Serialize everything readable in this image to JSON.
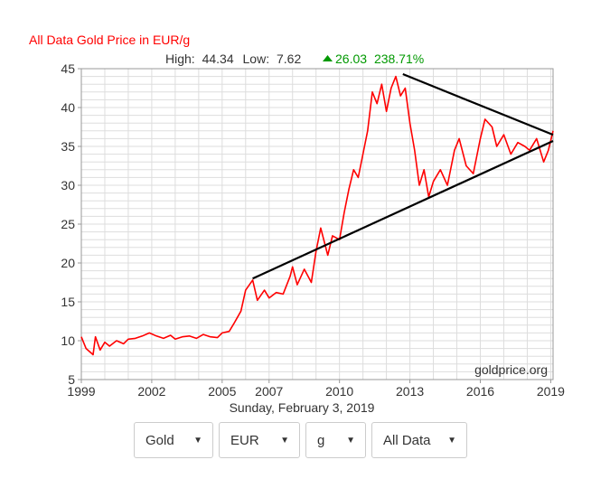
{
  "header": {
    "title": "All Data Gold Price in EUR/g",
    "high_label": "High:",
    "high_value": "44.34",
    "low_label": "Low:",
    "low_value": "7.62",
    "change_icon": "triangle-up-icon",
    "change_value": "26.03",
    "change_percent": "238.71%",
    "title_color": "#ff0000",
    "change_color": "#009900"
  },
  "chart_data": {
    "type": "line",
    "x_tick_labels": [
      "1999",
      "2002",
      "2005",
      "2007",
      "2010",
      "2013",
      "2016",
      "2019"
    ],
    "y_tick_labels": [
      "5",
      "10",
      "15",
      "20",
      "25",
      "30",
      "35",
      "40",
      "45"
    ],
    "xlim": [
      1999.0,
      2019.1
    ],
    "ylim": [
      5,
      45
    ],
    "grid": true,
    "series": [
      {
        "color": "#ff0000",
        "x": [
          1999.0,
          1999.2,
          1999.5,
          1999.6,
          1999.8,
          2000.0,
          2000.2,
          2000.5,
          2000.8,
          2001.0,
          2001.3,
          2001.6,
          2001.9,
          2002.2,
          2002.5,
          2002.8,
          2003.0,
          2003.3,
          2003.6,
          2003.9,
          2004.2,
          2004.5,
          2004.8,
          2005.0,
          2005.3,
          2005.5,
          2005.8,
          2006.0,
          2006.3,
          2006.5,
          2006.8,
          2007.0,
          2007.3,
          2007.6,
          2007.9,
          2008.0,
          2008.2,
          2008.5,
          2008.8,
          2009.0,
          2009.2,
          2009.5,
          2009.7,
          2010.0,
          2010.2,
          2010.4,
          2010.6,
          2010.8,
          2011.0,
          2011.2,
          2011.4,
          2011.6,
          2011.8,
          2012.0,
          2012.2,
          2012.4,
          2012.6,
          2012.8,
          2013.0,
          2013.2,
          2013.4,
          2013.6,
          2013.8,
          2014.0,
          2014.3,
          2014.6,
          2014.9,
          2015.1,
          2015.4,
          2015.7,
          2016.0,
          2016.2,
          2016.5,
          2016.7,
          2017.0,
          2017.3,
          2017.6,
          2017.9,
          2018.1,
          2018.4,
          2018.7,
          2018.9,
          2019.1
        ],
        "y": [
          10.5,
          9.0,
          8.2,
          10.5,
          8.8,
          9.8,
          9.3,
          10.0,
          9.6,
          10.2,
          10.3,
          10.6,
          11.0,
          10.6,
          10.3,
          10.7,
          10.2,
          10.5,
          10.6,
          10.3,
          10.8,
          10.5,
          10.4,
          11.0,
          11.2,
          12.2,
          13.8,
          16.5,
          17.8,
          15.2,
          16.5,
          15.5,
          16.2,
          16.0,
          18.3,
          19.5,
          17.2,
          19.2,
          17.5,
          21.5,
          24.5,
          21.0,
          23.5,
          23.0,
          26.5,
          29.5,
          32.0,
          31.0,
          34.0,
          37.0,
          42.0,
          40.5,
          43.0,
          39.5,
          42.5,
          44.0,
          41.5,
          42.5,
          38.0,
          34.5,
          30.0,
          32.0,
          28.5,
          30.5,
          32.0,
          30.0,
          34.5,
          36.0,
          32.5,
          31.5,
          36.0,
          38.5,
          37.5,
          35.0,
          36.5,
          34.0,
          35.5,
          35.0,
          34.5,
          36.0,
          33.0,
          34.5,
          37.0
        ]
      }
    ],
    "trendlines": [
      {
        "x": [
          2006.3,
          2019.1
        ],
        "y": [
          18.0,
          35.7
        ]
      },
      {
        "x": [
          2012.7,
          2019.1
        ],
        "y": [
          44.3,
          36.5
        ]
      }
    ],
    "watermark": "goldprice.org",
    "date_label": "Sunday, February 3, 2019"
  },
  "controls": [
    {
      "label": "Gold",
      "arrow": "triangle-down-icon"
    },
    {
      "label": "EUR",
      "arrow": "triangle-down-icon"
    },
    {
      "label": "g",
      "arrow": "triangle-down-icon"
    },
    {
      "label": "All Data",
      "arrow": "triangle-down-icon"
    }
  ]
}
